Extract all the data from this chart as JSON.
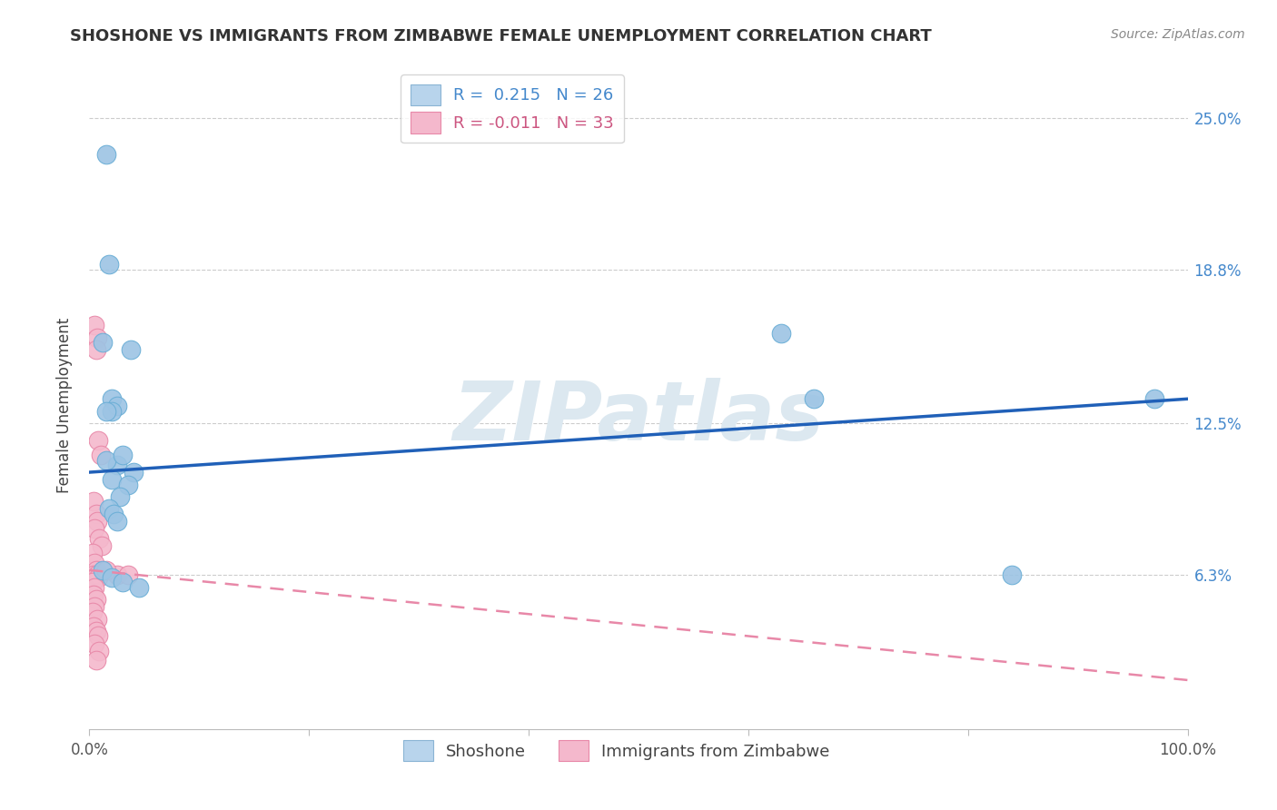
{
  "title": "SHOSHONE VS IMMIGRANTS FROM ZIMBABWE FEMALE UNEMPLOYMENT CORRELATION CHART",
  "source": "Source: ZipAtlas.com",
  "ylabel": "Female Unemployment",
  "ytick_labels": [
    "6.3%",
    "12.5%",
    "18.8%",
    "25.0%"
  ],
  "ytick_values": [
    6.3,
    12.5,
    18.8,
    25.0
  ],
  "ylim": [
    0,
    26.5
  ],
  "xlim": [
    0,
    100
  ],
  "shoshone_points": [
    [
      1.5,
      23.5
    ],
    [
      1.8,
      19.0
    ],
    [
      1.2,
      15.8
    ],
    [
      3.8,
      15.5
    ],
    [
      2.0,
      13.5
    ],
    [
      2.5,
      13.2
    ],
    [
      2.0,
      13.0
    ],
    [
      1.5,
      13.0
    ],
    [
      2.5,
      10.8
    ],
    [
      4.0,
      10.5
    ],
    [
      2.0,
      10.2
    ],
    [
      3.5,
      10.0
    ],
    [
      2.8,
      9.5
    ],
    [
      1.8,
      9.0
    ],
    [
      2.2,
      8.8
    ],
    [
      1.5,
      11.0
    ],
    [
      3.0,
      11.2
    ],
    [
      2.5,
      8.5
    ],
    [
      1.2,
      6.5
    ],
    [
      2.0,
      6.2
    ],
    [
      3.0,
      6.0
    ],
    [
      4.5,
      5.8
    ],
    [
      63.0,
      16.2
    ],
    [
      66.0,
      13.5
    ],
    [
      84.0,
      6.3
    ],
    [
      97.0,
      13.5
    ]
  ],
  "zimbabwe_points": [
    [
      0.5,
      16.5
    ],
    [
      0.7,
      16.0
    ],
    [
      0.6,
      15.5
    ],
    [
      0.8,
      11.8
    ],
    [
      1.0,
      11.2
    ],
    [
      0.4,
      9.3
    ],
    [
      0.6,
      8.8
    ],
    [
      0.7,
      8.5
    ],
    [
      0.5,
      8.2
    ],
    [
      0.9,
      7.8
    ],
    [
      1.1,
      7.5
    ],
    [
      0.3,
      7.2
    ],
    [
      0.5,
      6.8
    ],
    [
      0.6,
      6.5
    ],
    [
      0.4,
      6.3
    ],
    [
      0.7,
      6.3
    ],
    [
      0.8,
      6.2
    ],
    [
      0.3,
      6.0
    ],
    [
      0.5,
      5.8
    ],
    [
      0.4,
      5.5
    ],
    [
      0.6,
      5.3
    ],
    [
      0.5,
      5.0
    ],
    [
      0.3,
      4.8
    ],
    [
      0.7,
      4.5
    ],
    [
      0.4,
      4.2
    ],
    [
      0.6,
      4.0
    ],
    [
      0.8,
      3.8
    ],
    [
      0.5,
      3.5
    ],
    [
      0.9,
      3.2
    ],
    [
      0.6,
      2.8
    ],
    [
      2.5,
      6.3
    ],
    [
      1.5,
      6.5
    ],
    [
      3.5,
      6.3
    ]
  ],
  "shoshone_color": "#9cc4e4",
  "shoshone_edgecolor": "#6aaed6",
  "zimbabwe_color": "#f4b8cc",
  "zimbabwe_edgecolor": "#e888a8",
  "trend_shoshone_color": "#2060b8",
  "trend_zimbabwe_color": "#e888a8",
  "trend_shoshone_y0": 10.5,
  "trend_shoshone_y1": 13.5,
  "trend_zimbabwe_y0": 6.5,
  "trend_zimbabwe_y1": 2.0,
  "watermark": "ZIPatlas",
  "watermark_color": "#dce8f0",
  "background_color": "#ffffff",
  "grid_color": "#cccccc",
  "grid_style": "--",
  "title_fontsize": 13,
  "source_fontsize": 10,
  "ylabel_fontsize": 12,
  "tick_fontsize": 12,
  "legend_fontsize": 13,
  "legend1_labels": [
    "R =  0.215   N = 26",
    "R = -0.011   N = 33"
  ],
  "legend1_colors": [
    "#4488cc",
    "#cc5580"
  ],
  "legend2_labels": [
    "Shoshone",
    "Immigrants from Zimbabwe"
  ],
  "legend2_text_color": "#444444"
}
